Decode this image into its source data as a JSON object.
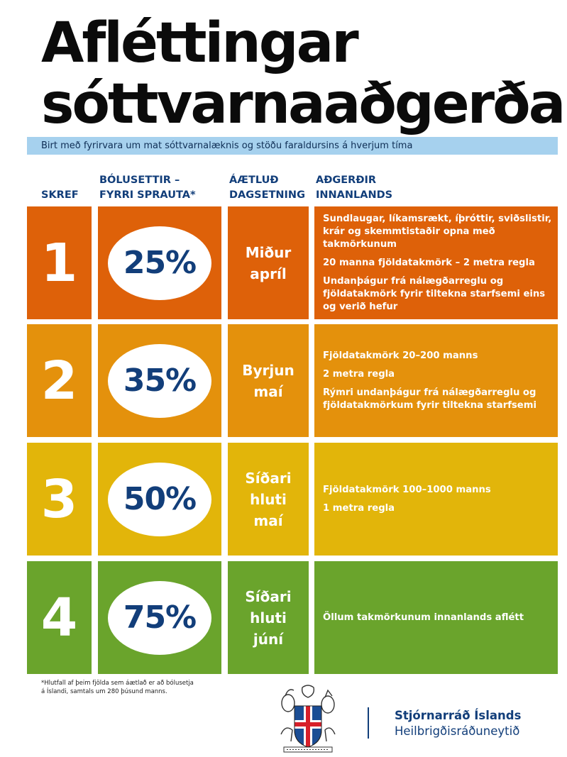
{
  "title": {
    "line1": "Afléttingar",
    "line2": "sóttvarnaaðgerða"
  },
  "subtitle": "Birt með fyrirvara um mat sóttvarnalæknis og stöðu faraldursins á hverjum tíma",
  "headers": {
    "step": "SKREF",
    "vaccinated_line1": "BÓLUSETTIR –",
    "vaccinated_line2": "FYRRI SPRAUTA*",
    "date_line1": "ÁÆTLUÐ",
    "date_line2": "DAGSETNING",
    "actions_line1": "AÐGERÐIR",
    "actions_line2": "INNANLANDS"
  },
  "colors": {
    "step1": "#de6109",
    "step2": "#e4910c",
    "step3": "#e2b50a",
    "step4": "#6aa42c",
    "navy": "#123e7a",
    "subtitle_bar": "#a6d1ee"
  },
  "steps": [
    {
      "number": "1",
      "percent": "25%",
      "date_lines": [
        "Miður",
        "apríl"
      ],
      "actions": [
        "Sundlaugar, líkamsrækt, íþróttir, sviðslistir, krár og skemmtistaðir opna með takmörkunum",
        "20 manna fjöldatakmörk  –  2 metra regla",
        "Undanþágur frá nálægðarreglu og fjöldatakmörk fyrir tiltekna starfsemi eins og verið hefur"
      ]
    },
    {
      "number": "2",
      "percent": "35%",
      "date_lines": [
        "Byrjun",
        "maí"
      ],
      "actions": [
        "Fjöldatakmörk 20–200 manns",
        "2 metra regla",
        "Rýmri undanþágur frá nálægðarreglu og fjöldatakmörkum fyrir tiltekna starfsemi"
      ]
    },
    {
      "number": "3",
      "percent": "50%",
      "date_lines": [
        "Síðari",
        "hluti",
        "maí"
      ],
      "actions": [
        "Fjöldatakmörk 100–1000 manns",
        "1 metra regla"
      ]
    },
    {
      "number": "4",
      "percent": "75%",
      "date_lines": [
        "Síðari",
        "hluti",
        "júní"
      ],
      "actions": [
        "Öllum takmörkunum innanlands aflétt"
      ]
    }
  ],
  "footnote": {
    "line1": "*Hlutfall af þeim fjölda sem áætlað er að bólusetja",
    "line2": "á Íslandi, samtals um 280 þúsund manns."
  },
  "org": {
    "name": "Stjórnarráð Íslands",
    "department": "Heilbrigðisráðuneytið"
  }
}
